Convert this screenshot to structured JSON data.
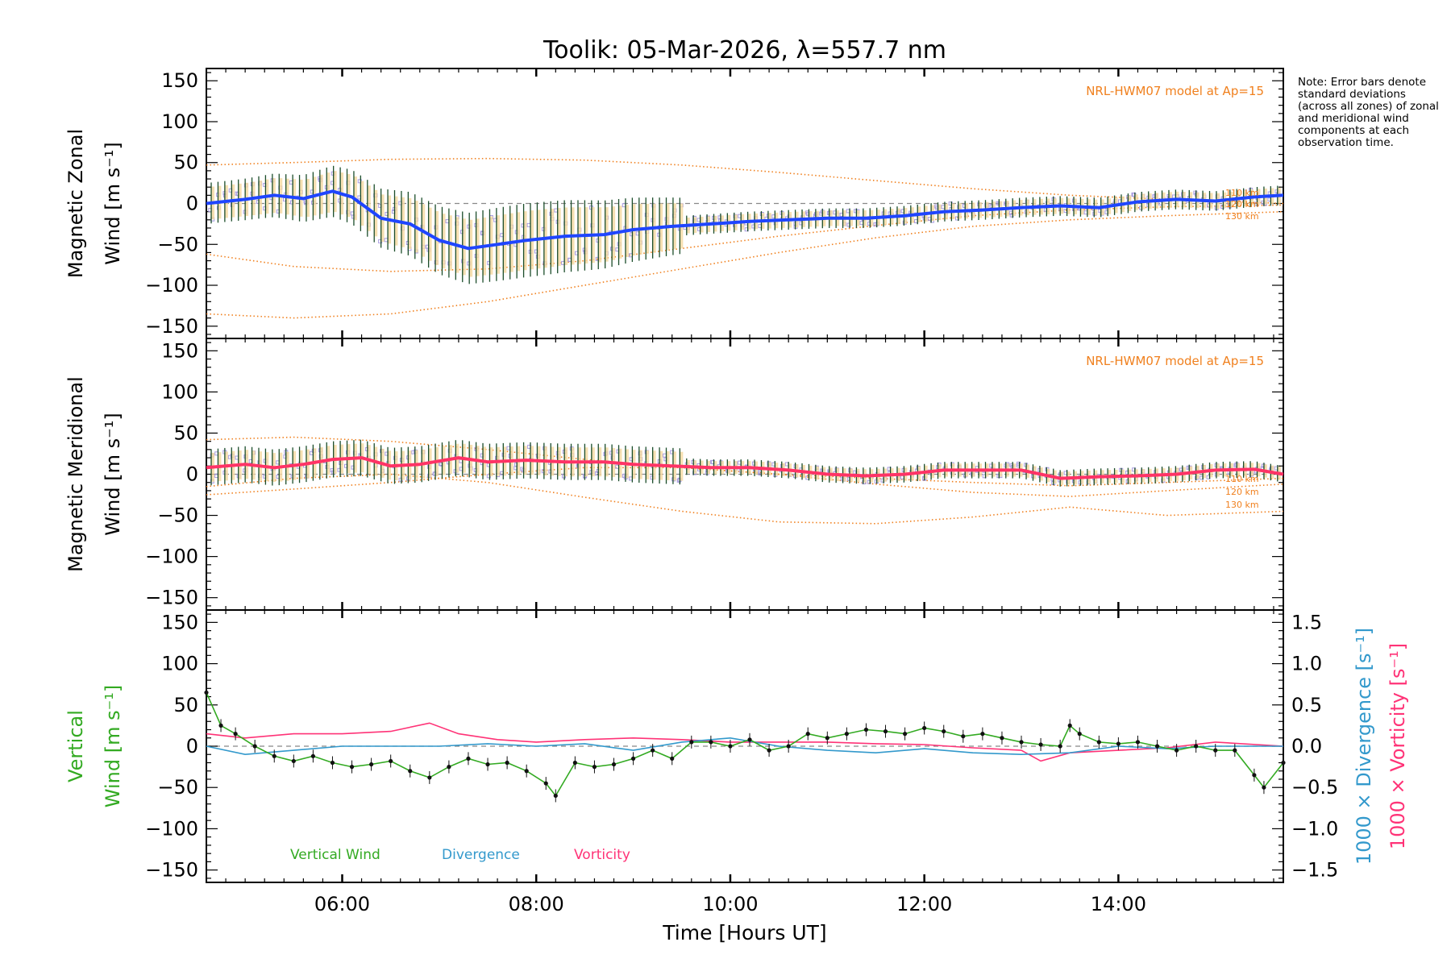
{
  "figure": {
    "title": "Toolik: 05-Mar-2026, λ=557.7 nm",
    "note": "Note: Error bars denote standard deviations (across all zones) of zonal and meridional wind components at each observation time.",
    "x_axis_label": "Time [Hours UT]"
  },
  "colors": {
    "zonal": "#1f45ff",
    "meridional": "#ff3366",
    "vertical": "#33aa22",
    "divergence": "#3399cc",
    "vorticity": "#ff3377",
    "model": "#f0801e",
    "error_bar_dark": "#1b4d2a",
    "error_bar_light": "#f5d9a0",
    "zone_points": "#a89ce0"
  },
  "chart_data": [
    {
      "id": "zonal",
      "type": "line",
      "ylabel_line1": "Magnetic Zonal",
      "ylabel_line2": "Wind [m s⁻¹]",
      "model_label": "NRL-HWM07 model at Ap=15",
      "model_altitudes": [
        "110 km",
        "120 km",
        "130 km"
      ],
      "xlim": [
        4.6,
        15.7
      ],
      "ylim": [
        -165,
        165
      ],
      "x_ticks": [
        "06:00",
        "08:00",
        "10:00",
        "12:00",
        "14:00"
      ],
      "y_ticks": [
        "150",
        "100",
        "50",
        "0",
        "−50",
        "−100",
        "−150"
      ],
      "series": [
        {
          "name": "Magnetic Zonal Wind",
          "x": [
            4.6,
            5.0,
            5.3,
            5.6,
            5.9,
            6.1,
            6.4,
            6.7,
            7.0,
            7.3,
            7.6,
            7.9,
            8.3,
            8.7,
            9.0,
            9.4,
            9.8,
            10.2,
            10.6,
            11.0,
            11.4,
            11.8,
            12.2,
            12.6,
            13.0,
            13.4,
            13.8,
            14.2,
            14.6,
            15.0,
            15.4,
            15.7
          ],
          "values": [
            0,
            5,
            10,
            6,
            15,
            8,
            -18,
            -25,
            -45,
            -55,
            -50,
            -45,
            -40,
            -38,
            -32,
            -28,
            -25,
            -22,
            -20,
            -18,
            -18,
            -15,
            -10,
            -8,
            -5,
            -3,
            -5,
            2,
            5,
            3,
            8,
            10
          ]
        },
        {
          "name": "NRL-HWM07 110 km",
          "x": [
            4.6,
            5.5,
            6.5,
            7.5,
            8.5,
            9.5,
            10.5,
            11.5,
            12.5,
            13.5,
            14.5,
            15.7
          ],
          "values": [
            47,
            50,
            54,
            55,
            53,
            47,
            38,
            28,
            18,
            10,
            5,
            0
          ]
        },
        {
          "name": "NRL-HWM07 120 km",
          "x": [
            4.6,
            5.5,
            6.5,
            7.5,
            8.5,
            9.5,
            10.5,
            11.5,
            12.5,
            13.5,
            14.5,
            15.7
          ],
          "values": [
            -62,
            -77,
            -83,
            -80,
            -70,
            -55,
            -40,
            -27,
            -15,
            -8,
            -4,
            -2
          ]
        },
        {
          "name": "NRL-HWM07 130 km",
          "x": [
            4.6,
            5.5,
            6.5,
            7.5,
            8.5,
            9.5,
            10.5,
            11.5,
            12.5,
            13.5,
            14.5,
            15.7
          ],
          "values": [
            -135,
            -140,
            -135,
            -120,
            -100,
            -80,
            -60,
            -42,
            -28,
            -20,
            -15,
            -10
          ]
        }
      ]
    },
    {
      "id": "meridional",
      "type": "line",
      "ylabel_line1": "Magnetic Meridional",
      "ylabel_line2": "Wind [m s⁻¹]",
      "model_label": "NRL-HWM07 model at Ap=15",
      "model_altitudes": [
        "110 km",
        "120 km",
        "130 km"
      ],
      "xlim": [
        4.6,
        15.7
      ],
      "ylim": [
        -165,
        165
      ],
      "x_ticks": [
        "06:00",
        "08:00",
        "10:00",
        "12:00",
        "14:00"
      ],
      "y_ticks": [
        "150",
        "100",
        "50",
        "0",
        "−50",
        "−100",
        "−150"
      ],
      "series": [
        {
          "name": "Magnetic Meridional Wind",
          "x": [
            4.6,
            5.0,
            5.3,
            5.6,
            5.9,
            6.2,
            6.5,
            6.8,
            7.2,
            7.5,
            7.9,
            8.3,
            8.7,
            9.0,
            9.4,
            9.8,
            10.2,
            10.6,
            11.0,
            11.4,
            11.8,
            12.2,
            12.6,
            13.0,
            13.4,
            13.8,
            14.2,
            14.6,
            15.0,
            15.4,
            15.7
          ],
          "values": [
            8,
            12,
            8,
            12,
            18,
            20,
            10,
            12,
            20,
            15,
            17,
            15,
            15,
            12,
            10,
            8,
            8,
            5,
            0,
            -2,
            0,
            5,
            5,
            5,
            -5,
            -3,
            -2,
            0,
            5,
            6,
            0
          ]
        },
        {
          "name": "NRL-HWM07 110 km",
          "x": [
            4.6,
            5.5,
            6.5,
            7.5,
            8.5,
            9.5,
            10.5,
            11.5,
            12.5,
            13.5,
            14.5,
            15.7
          ],
          "values": [
            42,
            45,
            40,
            30,
            18,
            8,
            0,
            -5,
            -10,
            -14,
            -10,
            -5
          ]
        },
        {
          "name": "NRL-HWM07 120 km",
          "x": [
            4.6,
            5.5,
            6.5,
            7.5,
            8.5,
            9.5,
            10.5,
            11.5,
            12.5,
            13.5,
            14.5,
            15.7
          ],
          "values": [
            -25,
            -18,
            -10,
            0,
            8,
            8,
            0,
            -12,
            -22,
            -27,
            -20,
            -12
          ]
        },
        {
          "name": "NRL-HWM07 130 km",
          "x": [
            4.6,
            5.5,
            6.5,
            7.5,
            8.5,
            9.5,
            10.5,
            11.5,
            12.5,
            13.5,
            14.5,
            15.7
          ],
          "values": [
            -15,
            -5,
            0,
            -10,
            -28,
            -45,
            -58,
            -60,
            -52,
            -40,
            -50,
            -45
          ]
        }
      ]
    },
    {
      "id": "vertical",
      "type": "line",
      "ylabel_line1": "Vertical",
      "ylabel_line2": "Wind [m s⁻¹]",
      "right_label_1": "1000 × Divergence [s⁻¹]",
      "right_label_2": "1000 × Vorticity [s⁻¹]",
      "legend": [
        "Vertical Wind",
        "Divergence",
        "Vorticity"
      ],
      "xlim": [
        4.6,
        15.7
      ],
      "ylim": [
        -165,
        165
      ],
      "ylim_right": [
        -1.65,
        1.65
      ],
      "x_ticks": [
        "06:00",
        "08:00",
        "10:00",
        "12:00",
        "14:00"
      ],
      "y_ticks": [
        "150",
        "100",
        "50",
        "0",
        "−50",
        "−100",
        "−150"
      ],
      "y_ticks_right": [
        "1.5",
        "1.0",
        "0.5",
        "0.0",
        "−0.5",
        "−1.0",
        "−1.5"
      ],
      "series": [
        {
          "name": "Vertical Wind",
          "x": [
            4.6,
            4.75,
            4.9,
            5.1,
            5.3,
            5.5,
            5.7,
            5.9,
            6.1,
            6.3,
            6.5,
            6.7,
            6.9,
            7.1,
            7.3,
            7.5,
            7.7,
            7.9,
            8.1,
            8.2,
            8.4,
            8.6,
            8.8,
            9.0,
            9.2,
            9.4,
            9.6,
            9.8,
            10.0,
            10.2,
            10.4,
            10.6,
            10.8,
            11.0,
            11.2,
            11.4,
            11.6,
            11.8,
            12.0,
            12.2,
            12.4,
            12.6,
            12.8,
            13.0,
            13.2,
            13.4,
            13.5,
            13.6,
            13.8,
            14.0,
            14.2,
            14.4,
            14.6,
            14.8,
            15.0,
            15.2,
            15.4,
            15.5,
            15.7
          ],
          "values": [
            65,
            25,
            15,
            0,
            -12,
            -18,
            -12,
            -20,
            -25,
            -22,
            -18,
            -30,
            -38,
            -25,
            -15,
            -22,
            -20,
            -30,
            -45,
            -60,
            -20,
            -25,
            -22,
            -15,
            -5,
            -15,
            5,
            5,
            0,
            8,
            -5,
            0,
            15,
            10,
            15,
            20,
            18,
            15,
            22,
            18,
            12,
            15,
            10,
            5,
            2,
            0,
            25,
            15,
            5,
            3,
            5,
            0,
            -5,
            0,
            -5,
            -5,
            -35,
            -50,
            -20
          ]
        },
        {
          "name": "Divergence",
          "x": [
            4.6,
            5.0,
            5.5,
            6.0,
            6.5,
            7.0,
            7.5,
            8.0,
            8.5,
            9.0,
            9.5,
            10.0,
            10.5,
            11.0,
            11.5,
            12.0,
            12.5,
            13.0,
            13.5,
            14.0,
            14.5,
            15.0,
            15.7
          ],
          "values": [
            0.0,
            -0.1,
            -0.05,
            0.0,
            0.0,
            0.0,
            0.03,
            0.0,
            0.03,
            -0.05,
            0.05,
            0.1,
            0.0,
            -0.05,
            -0.08,
            -0.03,
            -0.08,
            -0.1,
            -0.08,
            0.0,
            -0.03,
            0.0,
            0.0
          ]
        },
        {
          "name": "Vorticity",
          "x": [
            4.6,
            5.0,
            5.5,
            6.0,
            6.5,
            6.9,
            7.2,
            7.6,
            8.0,
            8.5,
            9.0,
            9.5,
            10.0,
            10.5,
            11.0,
            11.5,
            12.0,
            12.5,
            13.0,
            13.2,
            13.5,
            14.0,
            14.5,
            15.0,
            15.7
          ],
          "values": [
            0.15,
            0.1,
            0.15,
            0.15,
            0.18,
            0.28,
            0.15,
            0.08,
            0.05,
            0.08,
            0.1,
            0.08,
            0.05,
            0.05,
            0.05,
            0.03,
            0.02,
            -0.02,
            -0.05,
            -0.18,
            -0.08,
            -0.05,
            -0.02,
            0.05,
            0.0
          ]
        }
      ]
    }
  ]
}
